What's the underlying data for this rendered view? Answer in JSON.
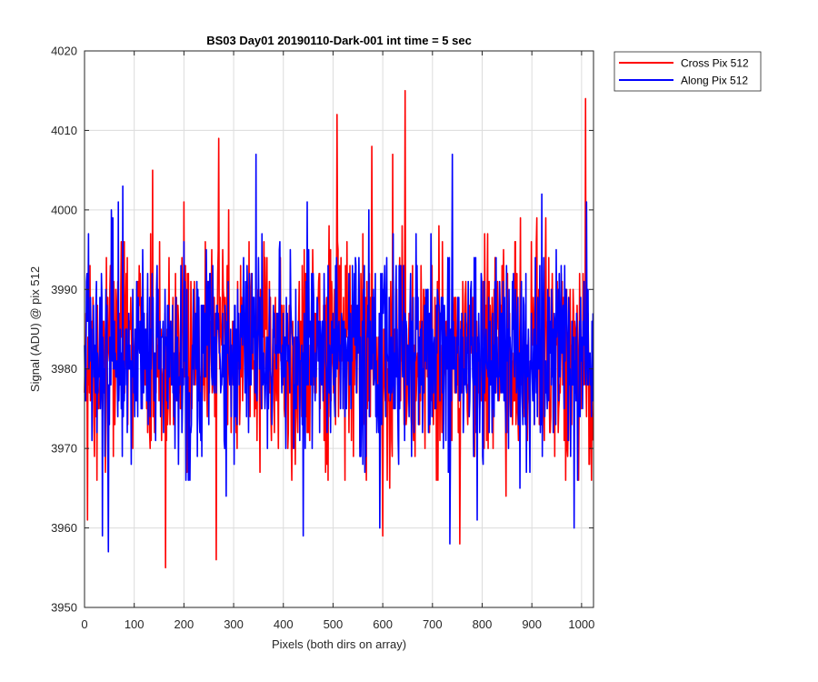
{
  "chart_data": {
    "type": "line",
    "title": "BS03 Day01 20190110-Dark-001 int time = 5 sec",
    "xlabel": "Pixels (both dirs on array)",
    "ylabel": "Signal (ADU) @ pix 512",
    "xlim": [
      0,
      1024
    ],
    "ylim": [
      3950,
      4020
    ],
    "xticks": [
      0,
      100,
      200,
      300,
      400,
      500,
      600,
      700,
      800,
      900,
      1000
    ],
    "yticks": [
      3950,
      3960,
      3970,
      3980,
      3990,
      4000,
      4010,
      4020
    ],
    "grid": true,
    "legend_position": "outside top-right",
    "series": [
      {
        "name": "Cross Pix 512",
        "color": "#ff0000",
        "mean": 3982,
        "noise_sd": 6.5,
        "seed": 17,
        "notable_points": [
          [
            6,
            3961
          ],
          [
            42,
            3967
          ],
          [
            137,
            4005
          ],
          [
            163,
            3955
          ],
          [
            200,
            4001
          ],
          [
            265,
            3956
          ],
          [
            270,
            4009
          ],
          [
            508,
            4012
          ],
          [
            578,
            4008
          ],
          [
            600,
            3959
          ],
          [
            620,
            4007
          ],
          [
            645,
            4015
          ],
          [
            755,
            3958
          ],
          [
            1008,
            4014
          ],
          [
            1018,
            3970
          ]
        ]
      },
      {
        "name": "Along Pix 512",
        "color": "#0000ff",
        "mean": 3982,
        "noise_sd": 6.2,
        "seed": 91,
        "notable_points": [
          [
            36,
            3959
          ],
          [
            48,
            3957
          ],
          [
            77,
            4003
          ],
          [
            345,
            4007
          ],
          [
            440,
            3959
          ],
          [
            594,
            3960
          ],
          [
            735,
            3958
          ],
          [
            740,
            4007
          ],
          [
            790,
            3961
          ],
          [
            920,
            4002
          ],
          [
            985,
            3960
          ],
          [
            1010,
            4001
          ]
        ]
      }
    ]
  }
}
